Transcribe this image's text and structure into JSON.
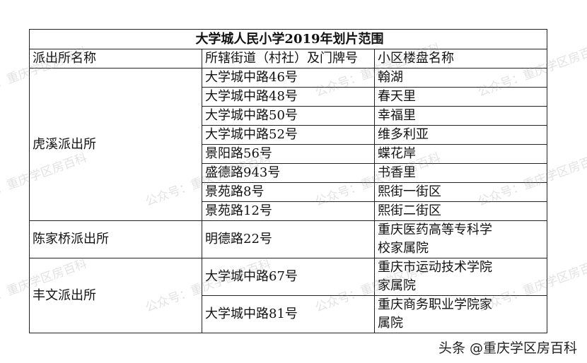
{
  "table": {
    "title": "大学城人民小学2019年划片范围",
    "headers": [
      "派出所名称",
      "所辖街道（村社）及门牌号",
      "小区楼盘名称"
    ],
    "groups": [
      {
        "station": "虎溪派出所",
        "rows": [
          {
            "street": "大学城中路46号",
            "estate": "翰湖"
          },
          {
            "street": "大学城中路48号",
            "estate": "春天里"
          },
          {
            "street": "大学城中路50号",
            "estate": "幸福里"
          },
          {
            "street": "大学城中路52号",
            "estate": "维多利亚"
          },
          {
            "street": "景阳路56号",
            "estate": "蝶花岸"
          },
          {
            "street": "盛德路943号",
            "estate": "书香里"
          },
          {
            "street": "景苑路8号",
            "estate": "熙街一街区"
          },
          {
            "street": "景苑路12号",
            "estate": "熙街二街区"
          }
        ]
      },
      {
        "station": "陈家桥派出所",
        "rows": [
          {
            "street": "明德路22号",
            "estate": "重庆医药高等专科学校家属院"
          }
        ]
      },
      {
        "station": "丰文派出所",
        "rows": [
          {
            "street": "大学城中路67号",
            "estate": "重庆市运动技术学院家属院"
          },
          {
            "street": "大学城中路81号",
            "estate": "重庆商务职业学院家属院"
          }
        ]
      }
    ]
  },
  "watermark": "公众号：重庆学区房百科",
  "credit": "头条 @重庆学区房百科"
}
